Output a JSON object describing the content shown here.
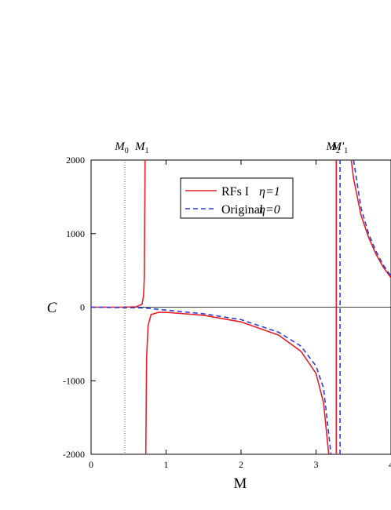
{
  "chart_data": {
    "type": "line",
    "xlabel": "M",
    "ylabel": "C",
    "xlim": [
      0,
      4
    ],
    "ylim": [
      -2000,
      2000
    ],
    "xticks": [
      0,
      1,
      2,
      3,
      4
    ],
    "yticks": [
      -2000,
      -1000,
      0,
      1000,
      2000
    ],
    "legend": "top",
    "annotations": [
      {
        "label": "M",
        "sub": "0",
        "x": 0.45
      },
      {
        "label": "M",
        "sub": "1",
        "x": 0.72
      },
      {
        "label": "M",
        "sub": "2",
        "x": 3.27
      },
      {
        "label": "M′",
        "sub": "1",
        "x": 3.36
      }
    ],
    "series": [
      {
        "name": "RFs I",
        "param": "η=1",
        "color": "#e8202a",
        "dash": false,
        "x": [
          0,
          0.4,
          0.6,
          0.68,
          0.7,
          0.71,
          0.72,
          null,
          0.73,
          0.74,
          0.76,
          0.8,
          0.9,
          1,
          1.5,
          2,
          2.5,
          2.8,
          3,
          3.1,
          3.17,
          null,
          3.27,
          3.27,
          null,
          3.47,
          3.5,
          3.6,
          3.7,
          3.8,
          3.9,
          4
        ],
        "values": [
          0,
          0,
          5,
          40,
          150,
          400,
          2000,
          null,
          -2000,
          -700,
          -250,
          -100,
          -70,
          -70,
          -110,
          -200,
          -380,
          -600,
          -900,
          -1300,
          -2000,
          null,
          -2000,
          2000,
          null,
          2000,
          1750,
          1250,
          950,
          720,
          540,
          400
        ]
      },
      {
        "name": "Original",
        "param": "η=0",
        "color": "#2b3fd6",
        "dash": true,
        "x": [
          0,
          0.7,
          1,
          1.5,
          2,
          2.5,
          2.8,
          3,
          3.1,
          3.2,
          null,
          3.32,
          3.32,
          null,
          3.5,
          3.6,
          3.7,
          3.8,
          3.9,
          4
        ],
        "values": [
          0,
          -10,
          -40,
          -90,
          -170,
          -340,
          -530,
          -800,
          -1100,
          -2000,
          null,
          -2000,
          2000,
          null,
          2000,
          1350,
          1000,
          760,
          570,
          420
        ]
      }
    ]
  }
}
